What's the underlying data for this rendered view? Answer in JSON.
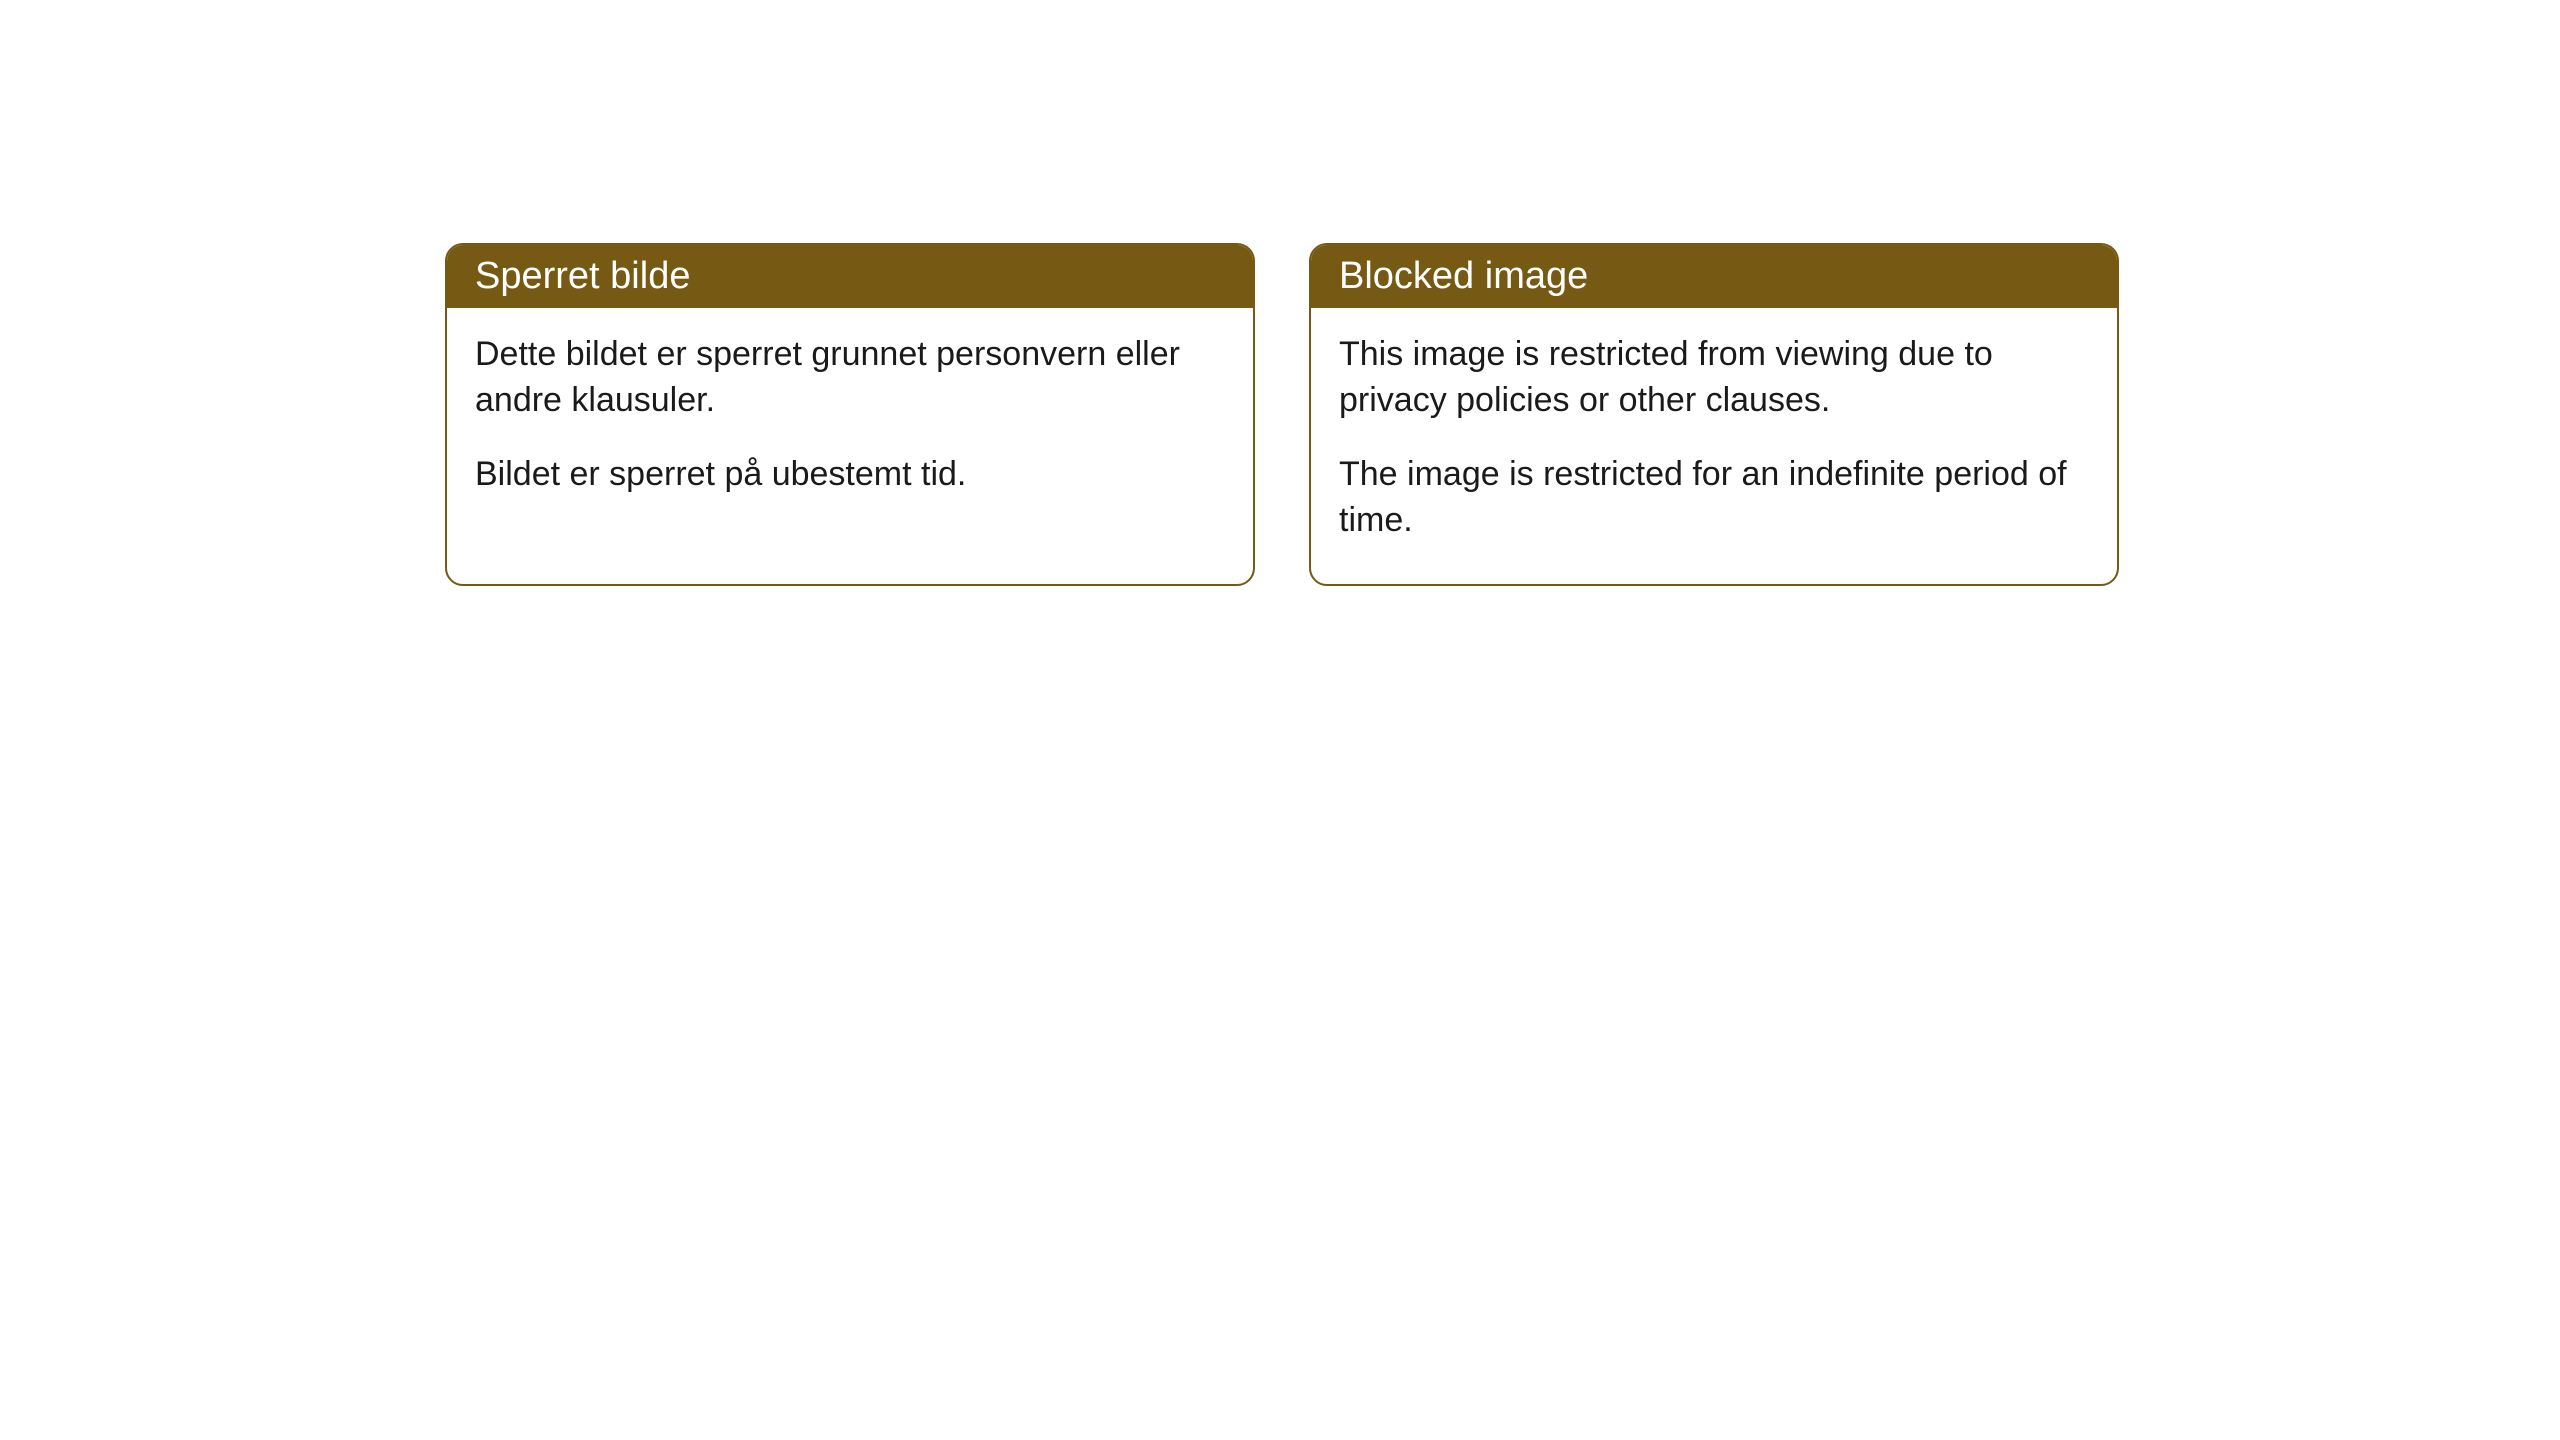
{
  "cards": [
    {
      "title": "Sperret bilde",
      "paragraph1": "Dette bildet er sperret grunnet personvern eller andre klausuler.",
      "paragraph2": "Bildet er sperret på ubestemt tid."
    },
    {
      "title": "Blocked image",
      "paragraph1": "This image is restricted from viewing due to privacy policies or other clauses.",
      "paragraph2": "The image is restricted for an indefinite period of time."
    }
  ],
  "style": {
    "header_background_color": "#765912",
    "header_text_color": "#ffffff",
    "border_color": "#765912",
    "body_background_color": "#ffffff",
    "body_text_color": "#1a1a1a",
    "border_radius": 18,
    "title_fontsize": 38,
    "body_fontsize": 34
  }
}
